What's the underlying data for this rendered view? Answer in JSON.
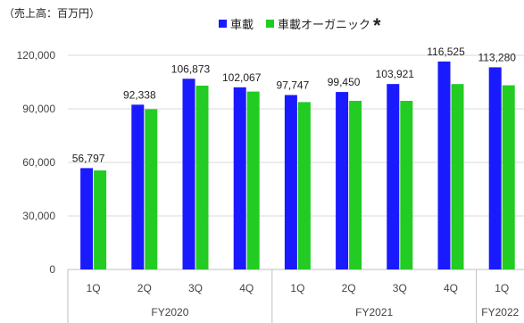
{
  "unit_label": "（売上高：百万円）",
  "legend": [
    {
      "label": "車載",
      "color": "#1a1aff"
    },
    {
      "label": "車載オーガニック",
      "color": "#22cc22",
      "mark": "*"
    }
  ],
  "chart_data": {
    "type": "bar",
    "categories": [
      "1Q",
      "2Q",
      "3Q",
      "4Q",
      "1Q",
      "2Q",
      "3Q",
      "4Q",
      "1Q"
    ],
    "groups": [
      {
        "label": "FY2020",
        "categories": [
          "1Q",
          "2Q",
          "3Q",
          "4Q"
        ]
      },
      {
        "label": "FY2021",
        "categories": [
          "1Q",
          "2Q",
          "3Q",
          "4Q"
        ]
      },
      {
        "label": "FY2022",
        "categories": [
          "1Q"
        ]
      }
    ],
    "series": [
      {
        "name": "車載",
        "color": "#1a1aff",
        "values": [
          56797,
          92338,
          106873,
          102067,
          97747,
          99450,
          103921,
          116525,
          113280
        ],
        "labels": [
          "56,797",
          "92,338",
          "106,873",
          "102,067",
          "97,747",
          "99,450",
          "103,921",
          "116,525",
          "113,280"
        ]
      },
      {
        "name": "車載オーガニック",
        "color": "#22cc22",
        "values": [
          55500,
          89800,
          103000,
          99700,
          93800,
          94500,
          94500,
          103900,
          103200
        ]
      }
    ],
    "yticks": [
      0,
      30000,
      60000,
      90000,
      120000
    ],
    "ytick_labels": [
      "0",
      "30,000",
      "60,000",
      "90,000",
      "120,000"
    ],
    "ylim": [
      0,
      120000
    ],
    "grid": true,
    "legend_position": "top"
  }
}
